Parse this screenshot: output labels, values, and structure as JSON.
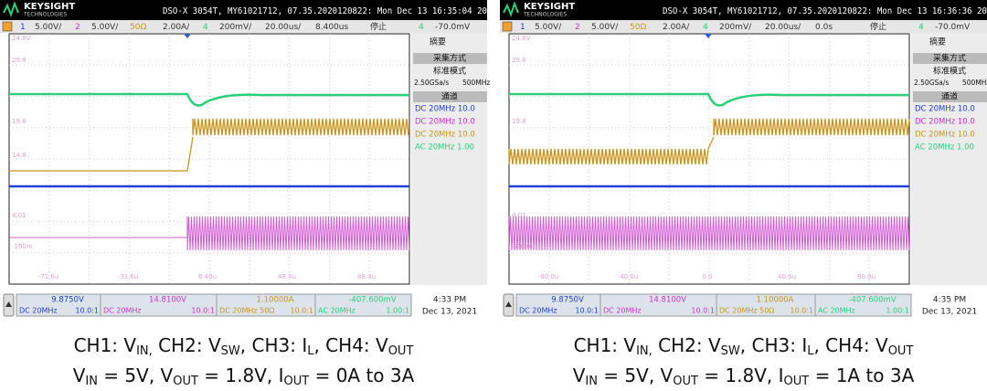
{
  "panels": [
    {
      "header": {
        "brand": "KEYSIGHT",
        "sub": "TECHNOLOGIES",
        "info": "DSO-X 3054T, MY61021712, 07.35.2020120822: Mon Dec 13 16:35:04 20"
      },
      "channel_bar": [
        "1",
        "5.00V/",
        "2",
        "5.00V/",
        "50Ω",
        "2.00A/",
        "4",
        "200mV/",
        "20.00us/",
        "8.400us",
        "停止",
        "4",
        "-70.0mV"
      ],
      "side": {
        "summary": "摘要",
        "acq_title": "采集方式",
        "acq_mode": "标准模式",
        "rate": "2.50GSa/s",
        "bw": "500MHz",
        "channels_title": "通道",
        "channels": [
          "DC 20MHz 10.0",
          "DC 20MHz 10.0",
          "DC 20MHz 10.0",
          "AC 20MHz 1.00"
        ]
      },
      "grid_labels": {
        "y": [
          "24.8V",
          "29.8",
          "19.8",
          "14.8",
          "4.01",
          "-190m"
        ],
        "x": [
          "-71.6u",
          "-31.6u",
          "8.40u",
          "48.4u",
          "88.4u"
        ]
      },
      "readout": [
        {
          "value": "9.8750V",
          "coupling": "DC 20MHz",
          "probe": "10.0:1"
        },
        {
          "value": "14.8100V",
          "coupling": "DC 20MHz",
          "probe": "10.0:1"
        },
        {
          "value": "1.10000A",
          "coupling": "DC 20MHz 50Ω",
          "probe": "10.0:1"
        },
        {
          "value": "-407.600mV",
          "coupling": "AC 20MHz",
          "probe": "1.00:1"
        }
      ],
      "clock": {
        "time": "4:33 PM",
        "date": "Dec 13, 2021"
      },
      "caption": [
        [
          {
            "text": "CH1: V"
          },
          {
            "sub": "IN,"
          },
          {
            "text": " CH2: V"
          },
          {
            "sub": "SW"
          },
          {
            "text": ", CH3: I"
          },
          {
            "sub": "L"
          },
          {
            "text": ", CH4: V"
          },
          {
            "sub": "OUT"
          }
        ],
        [
          {
            "text": "V"
          },
          {
            "sub": "IN"
          },
          {
            "text": " = 5V, V"
          },
          {
            "sub": "OUT"
          },
          {
            "text": " = 1.8V, I"
          },
          {
            "sub": "OUT"
          },
          {
            "text": " = 0A to 3A"
          }
        ]
      ]
    },
    {
      "header": {
        "brand": "KEYSIGHT",
        "sub": "TECHNOLOGIES",
        "info": "DSO-X 3054T, MY61021712, 07.35.2020120822: Mon Dec 13 16:36:36 20"
      },
      "channel_bar": [
        "1",
        "5.00V/",
        "2",
        "5.00V/",
        "50Ω",
        "2.00A/",
        "4",
        "200mV/",
        "20.00us/",
        "0.0s",
        "停止",
        "4",
        "-70.0mV"
      ],
      "side": {
        "summary": "摘要",
        "acq_title": "采集方式",
        "acq_mode": "标准模式",
        "rate": "2.50GSa/s",
        "bw": "500MHz",
        "channels_title": "通道",
        "channels": [
          "DC 20MHz 10.0",
          "DC 20MHz 10.0",
          "DC 20MHz 10.0",
          "AC 20MHz 1.00"
        ]
      },
      "grid_labels": {
        "y": [
          "24.8V",
          "29.8",
          "19.8",
          "14.8",
          "4.01",
          "-190m"
        ],
        "x": [
          "-80.0u",
          "-40.0u",
          "0.0",
          "40.0u",
          "80.0u"
        ]
      },
      "readout": [
        {
          "value": "9.8750V",
          "coupling": "DC 20MHz",
          "probe": "10.0:1"
        },
        {
          "value": "14.8100V",
          "coupling": "DC 20MHz",
          "probe": "10.0:1"
        },
        {
          "value": "1.10000A",
          "coupling": "DC 20MHz 50Ω",
          "probe": "10.0:1"
        },
        {
          "value": "-407.600mV",
          "coupling": "AC 20MHz",
          "probe": "1.00:1"
        }
      ],
      "clock": {
        "time": "4:35 PM",
        "date": "Dec 13, 2021"
      },
      "caption": [
        [
          {
            "text": "CH1: V"
          },
          {
            "sub": "IN,"
          },
          {
            "text": " CH2: V"
          },
          {
            "sub": "SW"
          },
          {
            "text": ", CH3: I"
          },
          {
            "sub": "L"
          },
          {
            "text": ", CH4: V"
          },
          {
            "sub": "OUT"
          }
        ],
        [
          {
            "text": "V"
          },
          {
            "sub": "IN"
          },
          {
            "text": " = 5V, V"
          },
          {
            "sub": "OUT"
          },
          {
            "text": " = 1.8V, I"
          },
          {
            "sub": "OUT"
          },
          {
            "text": " = 1A to 3A"
          }
        ]
      ]
    }
  ]
}
